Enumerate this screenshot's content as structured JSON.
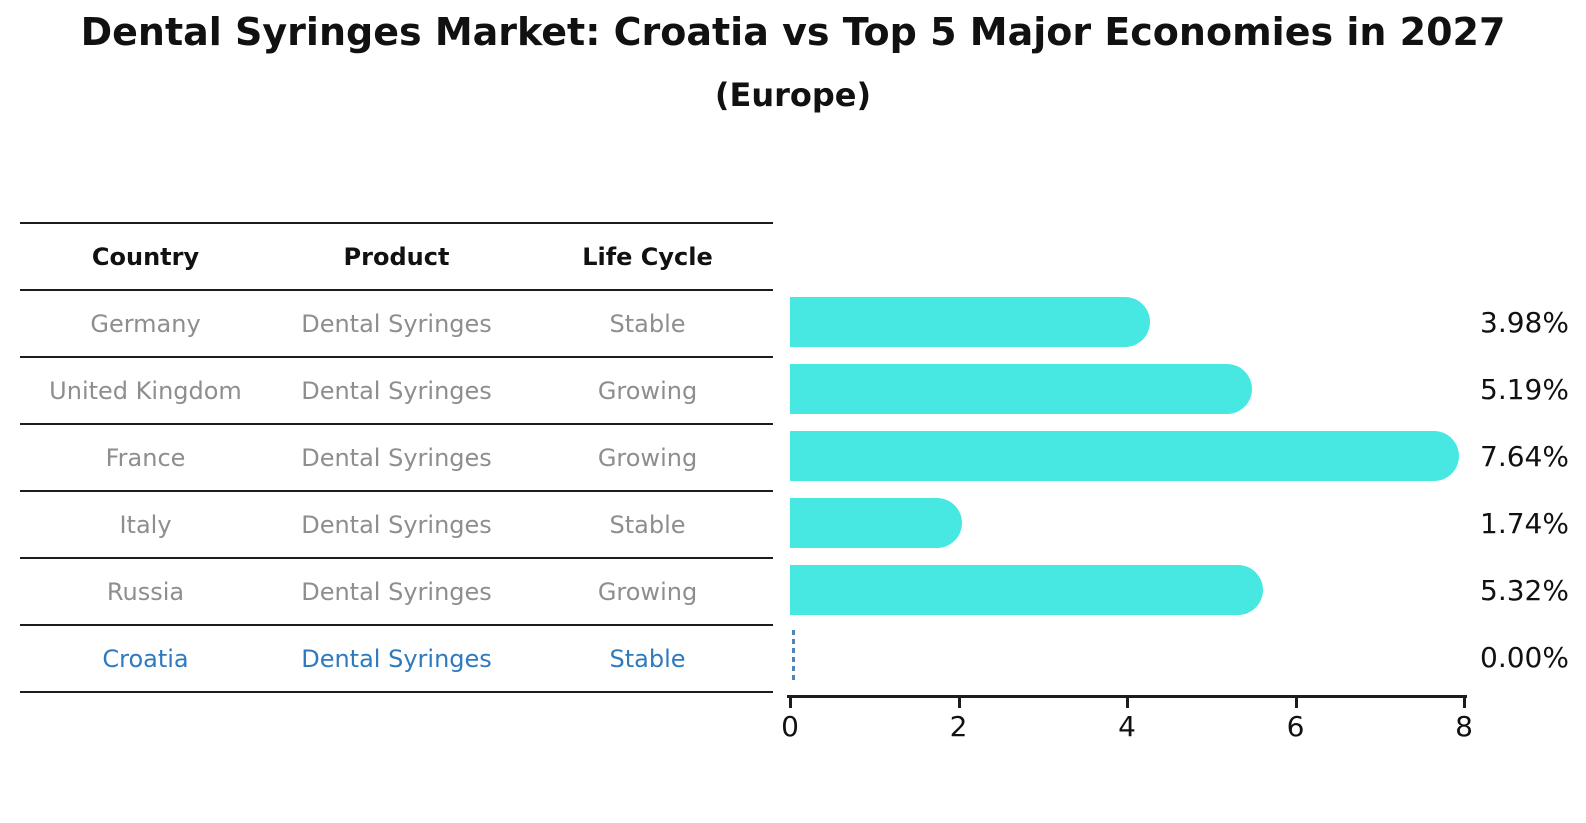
{
  "page": {
    "title": "Dental Syringes Market: Croatia vs Top 5 Major Economies in 2027",
    "subtitle": "(Europe)"
  },
  "table": {
    "headers": [
      "Country",
      "Product",
      "Life Cycle"
    ],
    "rows": [
      {
        "country": "Germany",
        "product": "Dental Syringes",
        "life_cycle": "Stable",
        "highlighted": false
      },
      {
        "country": "United Kingdom",
        "product": "Dental Syringes",
        "life_cycle": "Growing",
        "highlighted": false
      },
      {
        "country": "France",
        "product": "Dental Syringes",
        "life_cycle": "Growing",
        "highlighted": false
      },
      {
        "country": "Italy",
        "product": "Dental Syringes",
        "life_cycle": "Stable",
        "highlighted": false
      },
      {
        "country": "Russia",
        "product": "Dental Syringes",
        "life_cycle": "Growing",
        "highlighted": false
      },
      {
        "country": "Croatia",
        "product": "Dental Syringes",
        "life_cycle": "Stable",
        "highlighted": true
      }
    ]
  },
  "chart_data": {
    "type": "bar",
    "orientation": "horizontal",
    "title": "Dental Syringes Market: Croatia vs Top 5 Major Economies in 2027",
    "subtitle": "(Europe)",
    "categories": [
      "Germany",
      "United Kingdom",
      "France",
      "Italy",
      "Russia",
      "Croatia"
    ],
    "values": [
      3.98,
      5.19,
      7.64,
      1.74,
      5.32,
      0.0
    ],
    "value_labels": [
      "3.98%",
      "5.19%",
      "7.64%",
      "1.74%",
      "5.32%",
      "0.00%"
    ],
    "xlim": [
      0,
      8
    ],
    "x_ticks": [
      "0",
      "2",
      "4",
      "6",
      "8"
    ],
    "grid": false,
    "legend": false,
    "bar_color": "#48E8E2",
    "highlight_index": 5,
    "highlight_marker": "dashed-line-at-zero",
    "highlight_line_color": "#4E86B8",
    "highlight_text_color": "#2E7ABF",
    "muted_text_color": "#8E8E8E",
    "axis_color": "#1c1c1c",
    "label_text_color": "#111111"
  }
}
